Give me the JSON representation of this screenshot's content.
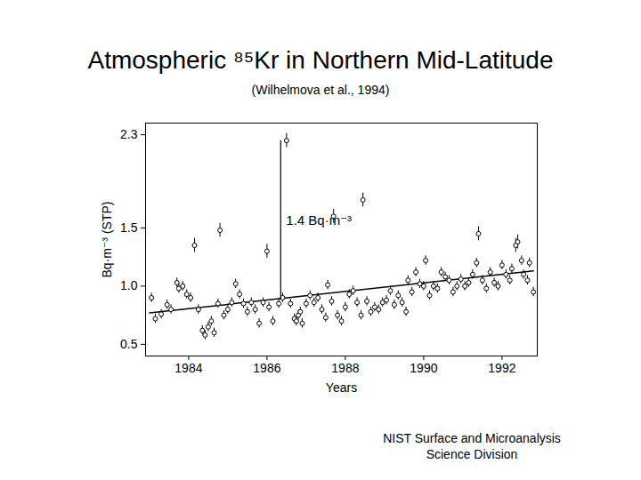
{
  "chart_data": {
    "type": "scatter",
    "title": "Atmospheric ⁸⁵Kr in Northern Mid-Latitude",
    "subtitle": "(Wilhelmova et al., 1994)",
    "caption": [
      "NIST Surface and Microanalysis",
      "Science Division"
    ],
    "x_label": "Years",
    "y_label": "Bq·m⁻³ (STP)",
    "xlim": [
      1982.9,
      1992.9
    ],
    "xticks": [
      1984,
      1986,
      1988,
      1990,
      1992
    ],
    "ylim": [
      0.4,
      2.4
    ],
    "yticks": [
      0.5,
      {
        "value": 1,
        "label": "1.0"
      },
      1.5,
      2.3
    ],
    "grid": false,
    "marker": "circle",
    "color": "#000000",
    "x": [
      1983.05,
      1983.15,
      1983.3,
      1983.45,
      1983.55,
      1983.7,
      1983.75,
      1983.85,
      1983.95,
      1984.05,
      1984.15,
      1984.25,
      1984.35,
      1984.42,
      1984.5,
      1984.58,
      1984.65,
      1984.75,
      1984.8,
      1984.9,
      1985.0,
      1985.1,
      1985.2,
      1985.3,
      1985.4,
      1985.5,
      1985.6,
      1985.7,
      1985.8,
      1985.9,
      1986.0,
      1986.05,
      1986.15,
      1986.3,
      1986.4,
      1986.5,
      1986.6,
      1986.7,
      1986.75,
      1986.8,
      1986.85,
      1986.9,
      1987.0,
      1987.1,
      1987.2,
      1987.3,
      1987.4,
      1987.5,
      1987.55,
      1987.65,
      1987.7,
      1987.8,
      1987.9,
      1988.0,
      1988.1,
      1988.2,
      1988.3,
      1988.4,
      1988.45,
      1988.55,
      1988.65,
      1988.75,
      1988.85,
      1988.95,
      1989.05,
      1989.15,
      1989.25,
      1989.35,
      1989.45,
      1989.55,
      1989.6,
      1989.7,
      1989.8,
      1989.9,
      1990.0,
      1990.05,
      1990.15,
      1990.25,
      1990.35,
      1990.45,
      1990.55,
      1990.65,
      1990.75,
      1990.85,
      1990.95,
      1991.05,
      1991.15,
      1991.25,
      1991.35,
      1991.4,
      1991.5,
      1991.6,
      1991.7,
      1991.8,
      1991.9,
      1992.0,
      1992.1,
      1992.2,
      1992.25,
      1992.35,
      1992.4,
      1992.5,
      1992.55,
      1992.65,
      1992.7,
      1992.8
    ],
    "values": [
      0.9,
      0.72,
      0.76,
      0.84,
      0.8,
      1.03,
      0.98,
      1.0,
      0.93,
      0.9,
      1.35,
      0.8,
      0.62,
      0.58,
      0.65,
      0.7,
      0.6,
      0.85,
      1.48,
      0.75,
      0.8,
      0.86,
      1.02,
      0.93,
      0.85,
      0.78,
      0.86,
      0.8,
      0.68,
      0.86,
      1.3,
      0.82,
      0.7,
      0.85,
      0.9,
      2.25,
      0.85,
      0.72,
      0.7,
      0.75,
      0.78,
      0.68,
      0.85,
      0.92,
      0.86,
      0.9,
      0.8,
      0.73,
      1.01,
      0.87,
      1.6,
      0.75,
      0.7,
      0.82,
      0.93,
      0.96,
      0.86,
      0.75,
      1.74,
      0.87,
      0.78,
      0.82,
      0.8,
      0.86,
      0.88,
      0.96,
      0.84,
      0.92,
      0.86,
      0.78,
      1.05,
      0.95,
      1.12,
      1.02,
      1.0,
      1.22,
      0.92,
      1.0,
      0.98,
      1.12,
      1.08,
      1.05,
      0.95,
      1.0,
      1.06,
      1.0,
      1.03,
      1.1,
      1.2,
      1.45,
      1.05,
      0.98,
      1.12,
      1.03,
      1.0,
      1.18,
      1.1,
      1.05,
      1.15,
      1.35,
      1.38,
      1.22,
      1.1,
      1.05,
      1.2,
      0.95
    ],
    "errors": [
      0.04,
      0.04,
      0.04,
      0.04,
      0.04,
      0.04,
      0.04,
      0.04,
      0.04,
      0.04,
      0.06,
      0.04,
      0.04,
      0.04,
      0.04,
      0.04,
      0.04,
      0.04,
      0.06,
      0.04,
      0.04,
      0.04,
      0.04,
      0.04,
      0.04,
      0.04,
      0.04,
      0.04,
      0.04,
      0.04,
      0.06,
      0.04,
      0.04,
      0.04,
      0.04,
      0.06,
      0.04,
      0.04,
      0.04,
      0.04,
      0.04,
      0.04,
      0.04,
      0.04,
      0.04,
      0.04,
      0.04,
      0.04,
      0.04,
      0.04,
      0.06,
      0.04,
      0.04,
      0.04,
      0.04,
      0.04,
      0.04,
      0.04,
      0.06,
      0.04,
      0.04,
      0.04,
      0.04,
      0.04,
      0.04,
      0.04,
      0.04,
      0.04,
      0.04,
      0.04,
      0.04,
      0.04,
      0.04,
      0.04,
      0.04,
      0.04,
      0.04,
      0.04,
      0.04,
      0.04,
      0.04,
      0.04,
      0.04,
      0.04,
      0.04,
      0.04,
      0.04,
      0.04,
      0.04,
      0.06,
      0.04,
      0.04,
      0.04,
      0.04,
      0.04,
      0.04,
      0.04,
      0.04,
      0.04,
      0.06,
      0.06,
      0.04,
      0.04,
      0.04,
      0.04,
      0.04
    ],
    "trend": {
      "type": "line",
      "line_style": "solid",
      "color": "#000000",
      "x": [
        1983.0,
        1992.8
      ],
      "values": [
        0.77,
        1.13
      ]
    },
    "annotation": {
      "text": "1.4 Bq·m⁻³",
      "x": 1986.35,
      "y_from": 0.88,
      "y_to": 2.25
    }
  }
}
